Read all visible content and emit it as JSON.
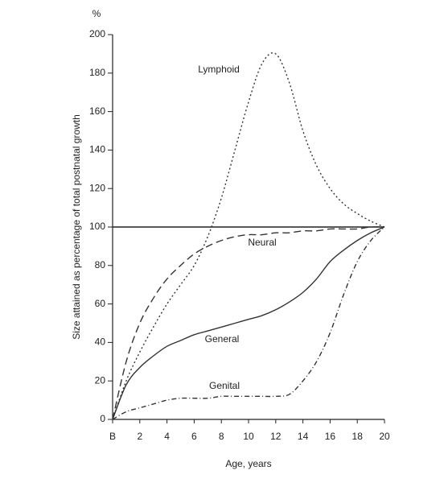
{
  "chart_data": {
    "type": "line",
    "y_unit": "%",
    "ylabel": "Size attained as percentage of total postnatal growth",
    "xlabel": "Age, years",
    "x": [
      0,
      1,
      2,
      3,
      4,
      5,
      6,
      7,
      8,
      9,
      10,
      11,
      12,
      13,
      14,
      15,
      16,
      17,
      18,
      19,
      20
    ],
    "series": [
      {
        "name": "Lymphoid",
        "color": "#333333",
        "dash": "2,3",
        "values": [
          0,
          20,
          35,
          48,
          60,
          70,
          80,
          95,
          115,
          140,
          165,
          185,
          190,
          175,
          150,
          132,
          120,
          112,
          107,
          103,
          100
        ]
      },
      {
        "name": "Neural",
        "color": "#333333",
        "dash": "9,5",
        "values": [
          0,
          30,
          50,
          63,
          73,
          80,
          86,
          90,
          93,
          95,
          96,
          96,
          97,
          97,
          98,
          98,
          99,
          99,
          99,
          100,
          100
        ]
      },
      {
        "name": "General",
        "color": "#333333",
        "dash": "none",
        "values": [
          0,
          18,
          27,
          33,
          38,
          41,
          44,
          46,
          48,
          50,
          52,
          54,
          57,
          61,
          66,
          73,
          82,
          88,
          93,
          97,
          100
        ]
      },
      {
        "name": "Genital",
        "color": "#333333",
        "dash": "6,3,1,3",
        "values": [
          0,
          4,
          6,
          8,
          10,
          11,
          11,
          11,
          12,
          12,
          12,
          12,
          12,
          13,
          20,
          30,
          45,
          65,
          82,
          93,
          100
        ]
      }
    ],
    "reference_line": 100,
    "xlim": [
      0,
      20
    ],
    "xticks": [
      {
        "value": 0,
        "label": "B"
      },
      2,
      4,
      6,
      8,
      10,
      12,
      14,
      16,
      18,
      20
    ],
    "ylim": [
      0,
      200
    ],
    "yticks": [
      0,
      20,
      40,
      60,
      80,
      100,
      120,
      140,
      160,
      180,
      200
    ],
    "grid": false
  }
}
